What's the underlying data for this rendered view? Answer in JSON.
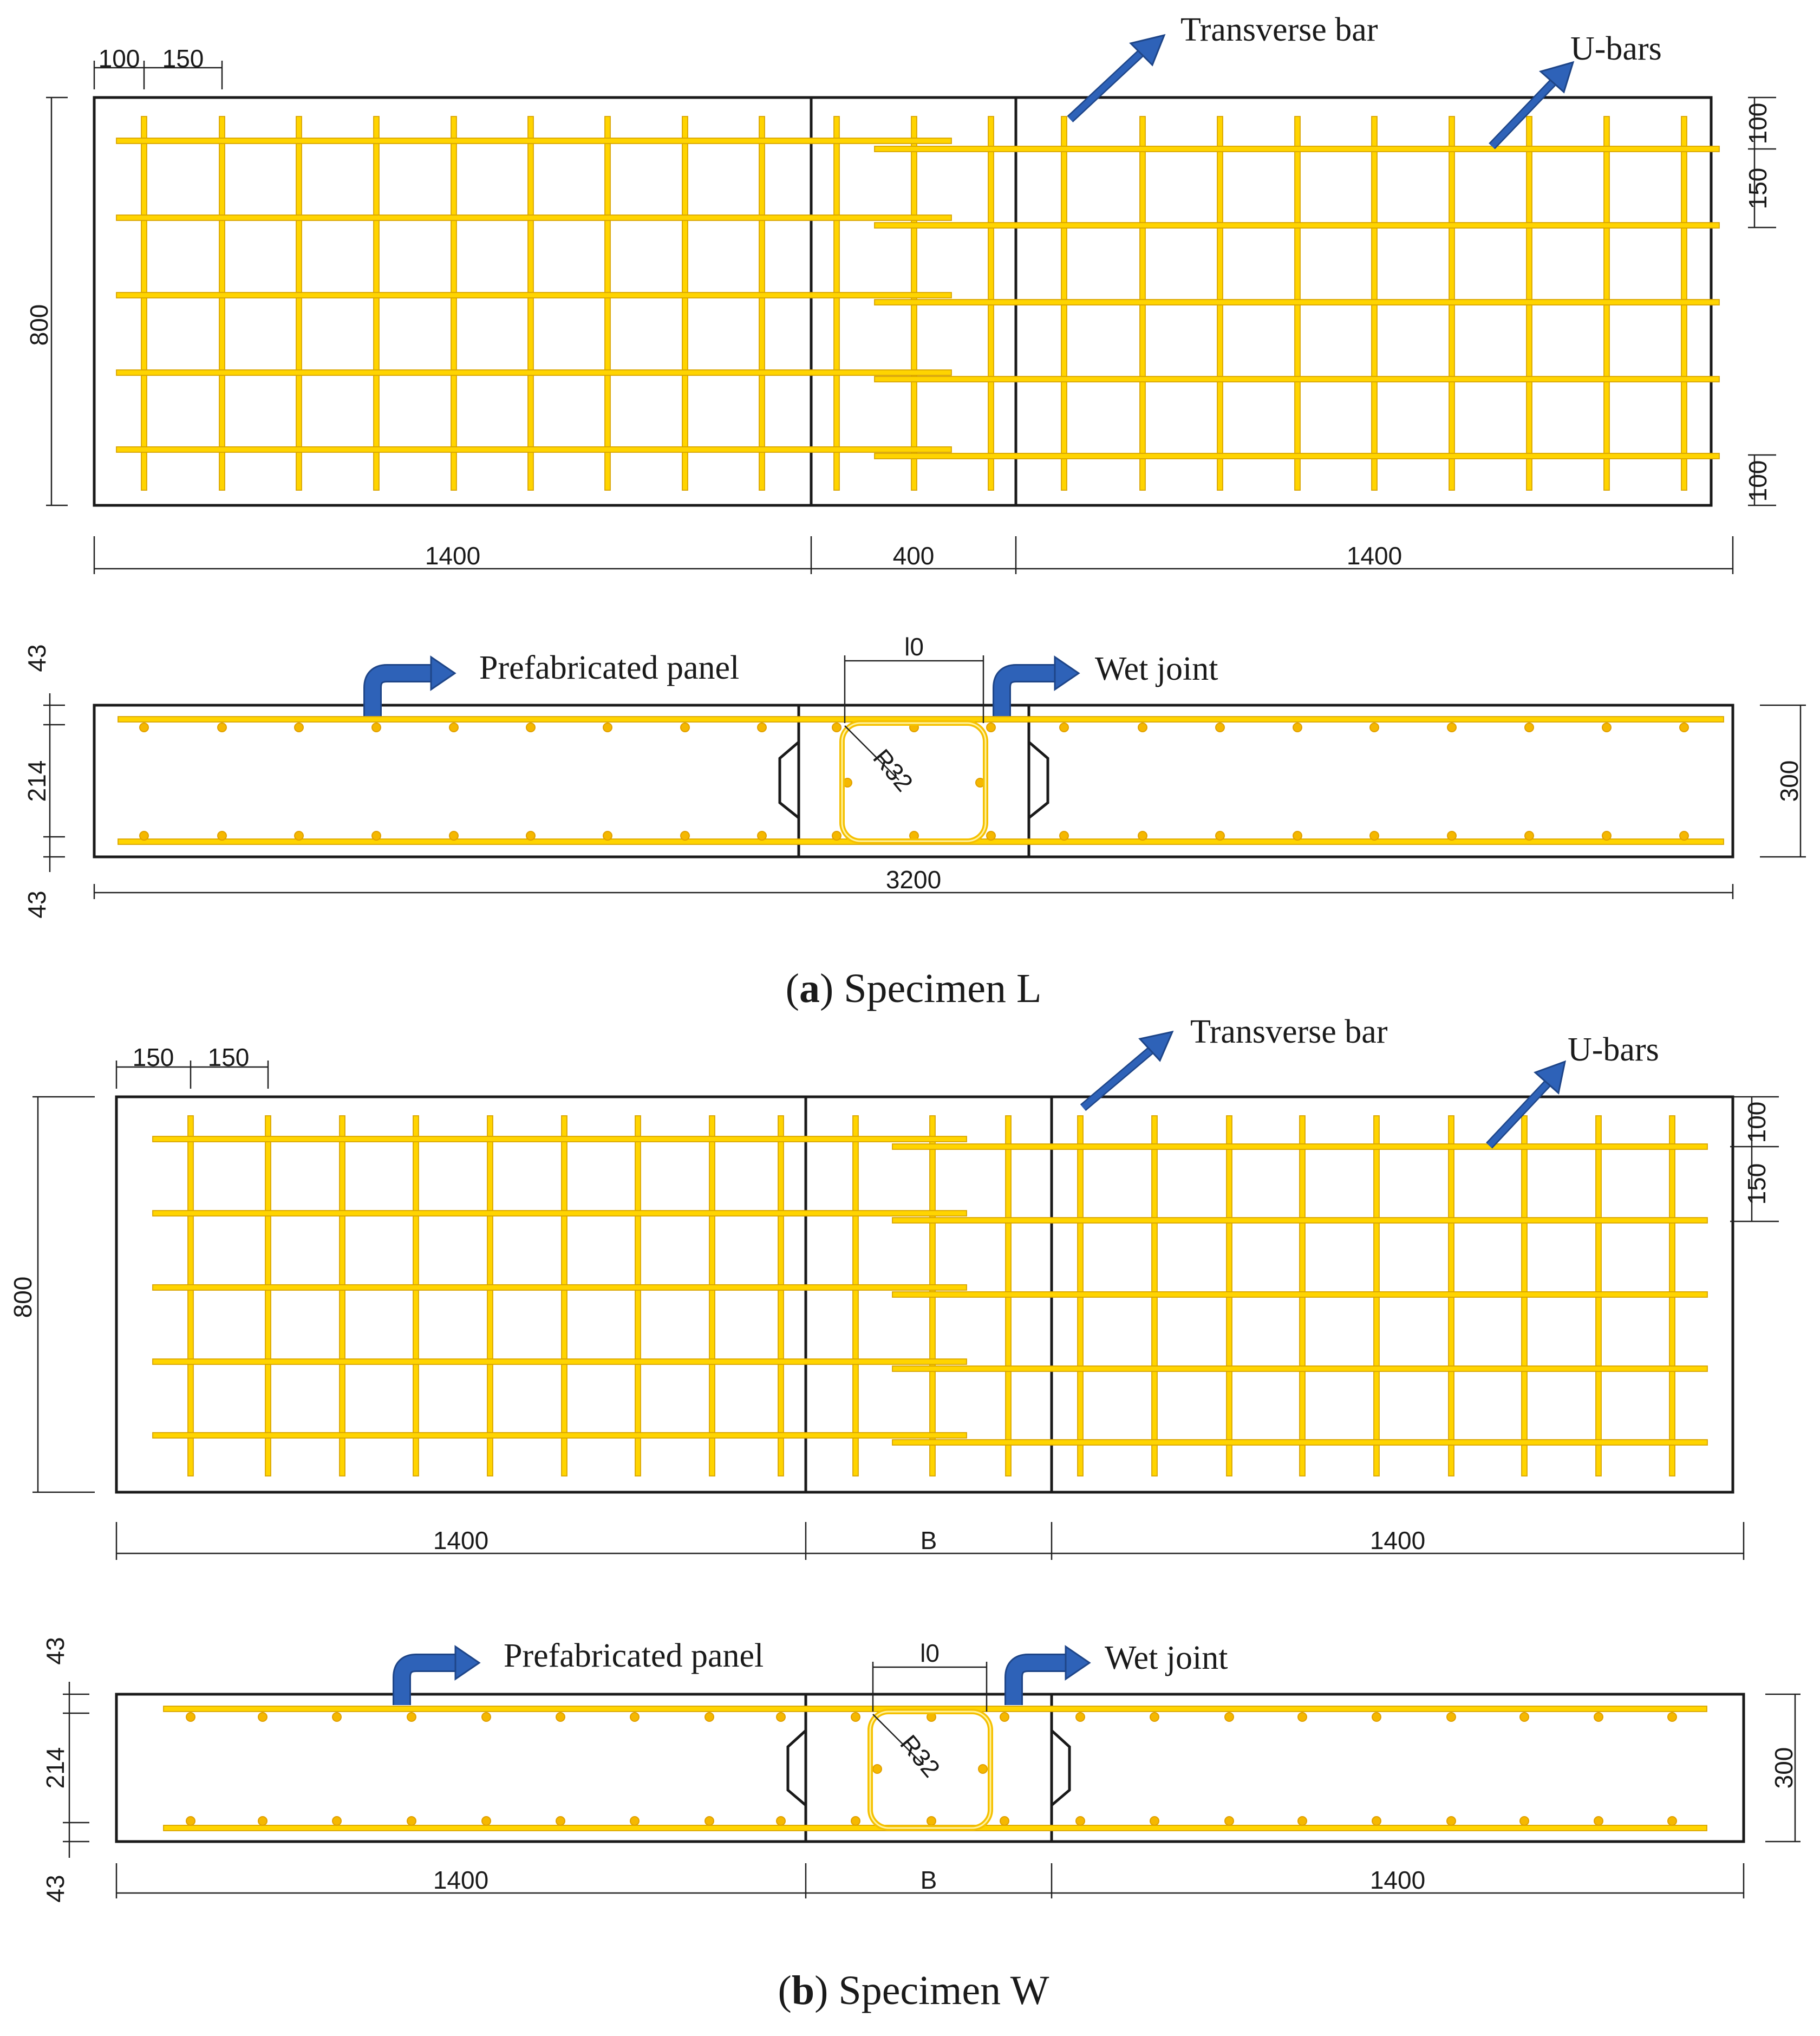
{
  "specimen_a": {
    "caption_letter": "a",
    "caption_text": "Specimen L",
    "plan": {
      "labels": {
        "transverse_bar": "Transverse bar",
        "u_bars": "U-bars"
      },
      "dims": {
        "width": "800",
        "left": "1400",
        "joint": "400",
        "right": "1400",
        "spacing_first": "100",
        "spacing_next": "150",
        "edge_top": "100",
        "spacing_right": "150",
        "edge_bottom": "100"
      }
    },
    "section": {
      "labels": {
        "prefabricated_panel": "Prefabricated panel",
        "wet_joint": "Wet joint",
        "lap_length": "l0",
        "radius": "R32"
      },
      "dims": {
        "cover_top": "43",
        "core": "214",
        "cover_bottom": "43",
        "height": "300",
        "total": "3200"
      }
    }
  },
  "specimen_b": {
    "caption_letter": "b",
    "caption_text": "Specimen W",
    "plan": {
      "labels": {
        "transverse_bar": "Transverse bar",
        "u_bars": "U-bars"
      },
      "dims": {
        "width": "800",
        "left": "1400",
        "joint": "B",
        "right": "1400",
        "spacing_first": "150",
        "spacing_next": "150",
        "edge_top": "100",
        "spacing_right": "150"
      }
    },
    "section": {
      "labels": {
        "prefabricated_panel": "Prefabricated panel",
        "wet_joint": "Wet joint",
        "lap_length": "l0",
        "radius": "R32"
      },
      "dims": {
        "cover_top": "43",
        "core": "214",
        "cover_bottom": "43",
        "height": "300",
        "left": "1400",
        "joint": "B",
        "right": "1400"
      }
    }
  },
  "colors": {
    "rebar": "#ffd400",
    "outline": "#1a1a1a",
    "arrow": "#2e62b8"
  }
}
